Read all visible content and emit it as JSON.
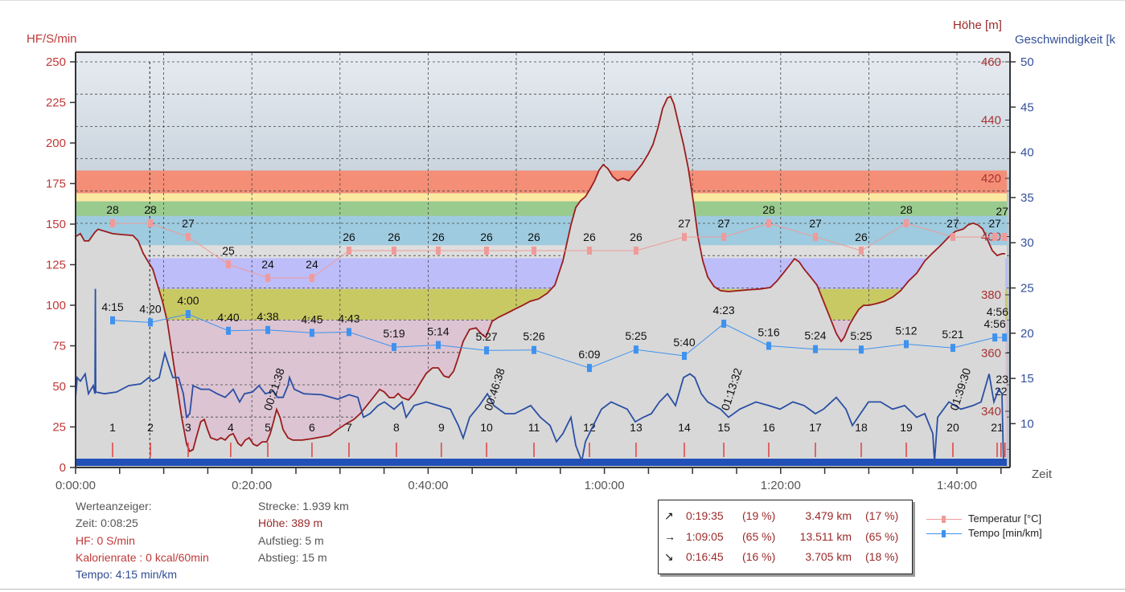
{
  "axes": {
    "left_title": "HF/S/min",
    "right_title_elev": "Höhe [m]",
    "right_title_speed": "Geschwindigkeit [k",
    "x_title": "Zeit",
    "left_ticks": [
      "0",
      "25",
      "50",
      "75",
      "100",
      "125",
      "150",
      "175",
      "200",
      "225",
      "250"
    ],
    "elev_ticks": [
      "340",
      "360",
      "380",
      "400",
      "420",
      "440",
      "460"
    ],
    "speed_ticks": [
      "10",
      "15",
      "20",
      "25",
      "30",
      "35",
      "40",
      "45",
      "50"
    ],
    "x_ticks": [
      "0:00:00",
      "0:20:00",
      "0:40:00",
      "1:00:00",
      "1:20:00",
      "1:40:00"
    ]
  },
  "chart_data": {
    "type": "line",
    "x_unit": "minutes",
    "xlim": [
      0,
      106
    ],
    "hf_ylim": [
      0,
      250
    ],
    "elev_ylim": [
      333,
      460
    ],
    "speed_ylim": [
      5.3,
      50
    ],
    "grid": true,
    "cursor_time_min": 8.42,
    "colors": {
      "hf_axis": "#c03838",
      "elev": "#9b1c1c",
      "speed": "#2a4fa3",
      "temp": "#f09a9a",
      "tempo": "#3f92ee",
      "lap_tick": "#e04040",
      "bar": "#2050b8",
      "elev_fill": "#d8d8d8"
    },
    "hf_zones": [
      {
        "from": 169,
        "to": 183,
        "color": "#f48e77"
      },
      {
        "from": 164,
        "to": 169,
        "color": "#fbe9a2"
      },
      {
        "from": 155,
        "to": 164,
        "color": "#9acb8e"
      },
      {
        "from": 137,
        "to": 155,
        "color": "#9ecbdf"
      },
      {
        "from": 129,
        "to": 137,
        "color": "#dedede"
      },
      {
        "from": 110,
        "to": 129,
        "color": "#bdbdfa"
      },
      {
        "from": 91,
        "to": 110,
        "color": "#c9c964"
      },
      {
        "from": 0,
        "to": 91,
        "color": "#dcc4d3"
      }
    ],
    "elevation": [
      [
        0,
        400
      ],
      [
        0.55,
        401
      ],
      [
        1,
        398.5
      ],
      [
        1.5,
        398.5
      ],
      [
        2.2,
        401.5
      ],
      [
        2.55,
        402.5
      ],
      [
        4.2,
        401
      ],
      [
        5.2,
        400.7
      ],
      [
        6.5,
        400.4
      ],
      [
        7.1,
        398.5
      ],
      [
        7.66,
        394.3
      ],
      [
        8.2,
        391.5
      ],
      [
        8.76,
        388.8
      ],
      [
        9.3,
        383.3
      ],
      [
        9.85,
        377.8
      ],
      [
        10.4,
        370.9
      ],
      [
        10.95,
        359.9
      ],
      [
        11.5,
        348.9
      ],
      [
        12.04,
        337.8
      ],
      [
        12.6,
        328.7
      ],
      [
        12.96,
        326.2
      ],
      [
        13.33,
        326.8
      ],
      [
        13.69,
        330.9
      ],
      [
        14.2,
        336.4
      ],
      [
        14.6,
        337.2
      ],
      [
        14.97,
        333.7
      ],
      [
        15.33,
        330.9
      ],
      [
        16.06,
        330.1
      ],
      [
        16.5,
        330.9
      ],
      [
        16.97,
        330.1
      ],
      [
        17.43,
        331.7
      ],
      [
        17.88,
        332.3
      ],
      [
        18.43,
        329
      ],
      [
        18.8,
        328.1
      ],
      [
        19.25,
        330.1
      ],
      [
        19.7,
        330.9
      ],
      [
        20.16,
        328.7
      ],
      [
        20.6,
        328.1
      ],
      [
        21.17,
        329.5
      ],
      [
        21.7,
        329.5
      ],
      [
        22.08,
        332.3
      ],
      [
        22.45,
        336.4
      ],
      [
        22.81,
        340.6
      ],
      [
        23.2,
        337.8
      ],
      [
        23.54,
        333.7
      ],
      [
        24.1,
        330.9
      ],
      [
        24.64,
        330.1
      ],
      [
        25.7,
        330.1
      ],
      [
        26.82,
        330.6
      ],
      [
        28.83,
        331.7
      ],
      [
        29.7,
        333.7
      ],
      [
        30.66,
        335.6
      ],
      [
        31.57,
        337.2
      ],
      [
        32.3,
        339.2
      ],
      [
        33.03,
        341.9
      ],
      [
        33.76,
        344.7
      ],
      [
        34.5,
        347.5
      ],
      [
        35.04,
        346.6
      ],
      [
        35.6,
        344.7
      ],
      [
        36.13,
        344.7
      ],
      [
        36.6,
        346.1
      ],
      [
        37.04,
        344.7
      ],
      [
        37.77,
        343.9
      ],
      [
        38.41,
        346.1
      ],
      [
        39.05,
        349.4
      ],
      [
        39.78,
        353
      ],
      [
        40.5,
        354.9
      ],
      [
        41.15,
        354.9
      ],
      [
        41.8,
        352.1
      ],
      [
        42.34,
        351.6
      ],
      [
        42.9,
        353.8
      ],
      [
        43.43,
        358.5
      ],
      [
        43.98,
        364
      ],
      [
        44.71,
        368.1
      ],
      [
        45.44,
        368.6
      ],
      [
        45.99,
        366.7
      ],
      [
        46.54,
        365.4
      ],
      [
        47.26,
        370.9
      ],
      [
        48,
        372.3
      ],
      [
        48.9,
        373.6
      ],
      [
        49.8,
        375
      ],
      [
        50.73,
        376.4
      ],
      [
        51.6,
        377.8
      ],
      [
        52.55,
        378.6
      ],
      [
        53.5,
        380.5
      ],
      [
        54.38,
        383.3
      ],
      [
        55.29,
        391.6
      ],
      [
        56.2,
        404
      ],
      [
        56.75,
        410
      ],
      [
        57.3,
        412.3
      ],
      [
        57.85,
        413.7
      ],
      [
        58.39,
        416.4
      ],
      [
        58.9,
        419.2
      ],
      [
        59.4,
        422.8
      ],
      [
        59.86,
        424.7
      ],
      [
        60.4,
        423.3
      ],
      [
        60.95,
        420.6
      ],
      [
        61.5,
        419.2
      ],
      [
        62.1,
        420
      ],
      [
        62.77,
        419.2
      ],
      [
        63.5,
        422
      ],
      [
        64.23,
        424.7
      ],
      [
        64.96,
        428.3
      ],
      [
        65.51,
        431.6
      ],
      [
        66.06,
        437.1
      ],
      [
        66.61,
        444
      ],
      [
        67.15,
        447.6
      ],
      [
        67.52,
        448.1
      ],
      [
        67.9,
        445.4
      ],
      [
        68.43,
        438.5
      ],
      [
        68.98,
        431.6
      ],
      [
        69.53,
        423.3
      ],
      [
        70.07,
        412.3
      ],
      [
        70.62,
        399.9
      ],
      [
        71.17,
        391.6
      ],
      [
        71.72,
        386.1
      ],
      [
        72.45,
        382.8
      ],
      [
        73.18,
        381.4
      ],
      [
        74.1,
        381.1
      ],
      [
        76.28,
        381.7
      ],
      [
        77.65,
        382
      ],
      [
        78.83,
        382.5
      ],
      [
        79.56,
        384.7
      ],
      [
        80.29,
        387.4
      ],
      [
        81.02,
        390.2
      ],
      [
        81.57,
        392.4
      ],
      [
        82.1,
        391.3
      ],
      [
        82.66,
        388.8
      ],
      [
        83.4,
        386.1
      ],
      [
        84.12,
        383.3
      ],
      [
        84.85,
        377.8
      ],
      [
        85.58,
        372.3
      ],
      [
        86.31,
        366.7
      ],
      [
        86.86,
        364
      ],
      [
        87.22,
        365.4
      ],
      [
        87.77,
        369.5
      ],
      [
        88.3,
        372.3
      ],
      [
        88.87,
        375
      ],
      [
        89.4,
        376.4
      ],
      [
        89.96,
        376.4
      ],
      [
        90.9,
        377
      ],
      [
        91.79,
        377.8
      ],
      [
        92.7,
        379.2
      ],
      [
        93.61,
        381.4
      ],
      [
        94.5,
        384.7
      ],
      [
        95.44,
        387.4
      ],
      [
        96.35,
        391.6
      ],
      [
        97.26,
        394.4
      ],
      [
        98.2,
        397.1
      ],
      [
        99.09,
        399.9
      ],
      [
        99.82,
        401.8
      ],
      [
        100.73,
        402.6
      ],
      [
        101.27,
        404
      ],
      [
        101.82,
        404.6
      ],
      [
        102.37,
        404
      ],
      [
        102.92,
        402.6
      ],
      [
        103.46,
        399
      ],
      [
        104.01,
        395.2
      ],
      [
        104.56,
        393.5
      ],
      [
        105.1,
        394.1
      ],
      [
        105.47,
        394.1
      ]
    ],
    "speed": [
      [
        0,
        12.9
      ],
      [
        0.18,
        15.1
      ],
      [
        0.55,
        14.7
      ],
      [
        1.09,
        15.5
      ],
      [
        1.46,
        13.3
      ],
      [
        2.0,
        14.2
      ],
      [
        2.2,
        13.3
      ],
      [
        2.24,
        24.9
      ],
      [
        2.28,
        13.5
      ],
      [
        3.28,
        13.3
      ],
      [
        4.65,
        13.5
      ],
      [
        6.02,
        14.2
      ],
      [
        7.39,
        14.4
      ],
      [
        8.3,
        15.1
      ],
      [
        8.76,
        14.7
      ],
      [
        9.49,
        15.1
      ],
      [
        10.13,
        17.8
      ],
      [
        10.58,
        16.4
      ],
      [
        11.04,
        15.1
      ],
      [
        11.68,
        15.1
      ],
      [
        12.23,
        13.3
      ],
      [
        12.59,
        10.7
      ],
      [
        12.96,
        11.1
      ],
      [
        13.32,
        14.2
      ],
      [
        14.23,
        13.8
      ],
      [
        15.15,
        13.8
      ],
      [
        16.06,
        13.3
      ],
      [
        16.97,
        12.9
      ],
      [
        17.88,
        13.8
      ],
      [
        18.61,
        12.4
      ],
      [
        19.16,
        13.3
      ],
      [
        20.07,
        13.5
      ],
      [
        20.8,
        14.2
      ],
      [
        21.53,
        13.3
      ],
      [
        22.45,
        13.6
      ],
      [
        22.9,
        12.9
      ],
      [
        23.54,
        12.9
      ],
      [
        24.09,
        14.2
      ],
      [
        24.27,
        15.1
      ],
      [
        24.82,
        13.8
      ],
      [
        25.91,
        13.3
      ],
      [
        27.92,
        13.2
      ],
      [
        29.74,
        12.7
      ],
      [
        31.02,
        13.2
      ],
      [
        32.03,
        12.9
      ],
      [
        32.66,
        10.7
      ],
      [
        33.39,
        11.1
      ],
      [
        34.31,
        12.0
      ],
      [
        35.04,
        12.4
      ],
      [
        36.13,
        11.6
      ],
      [
        37.04,
        12.4
      ],
      [
        37.5,
        10.7
      ],
      [
        38.41,
        12.0
      ],
      [
        39.78,
        12.4
      ],
      [
        41.15,
        12.0
      ],
      [
        42.52,
        11.6
      ],
      [
        43.43,
        9.8
      ],
      [
        43.98,
        8.4
      ],
      [
        44.71,
        10.7
      ],
      [
        45.8,
        12.0
      ],
      [
        46.72,
        13.3
      ],
      [
        47.45,
        12.0
      ],
      [
        48.72,
        11.1
      ],
      [
        49.82,
        11.1
      ],
      [
        51.64,
        12.0
      ],
      [
        52.74,
        10.7
      ],
      [
        53.83,
        9.8
      ],
      [
        54.56,
        8.0
      ],
      [
        55.29,
        8.9
      ],
      [
        56.2,
        10.7
      ],
      [
        56.75,
        7.6
      ],
      [
        57.3,
        6.2
      ],
      [
        57.4,
        5.4
      ],
      [
        57.5,
        6.2
      ],
      [
        57.85,
        8.0
      ],
      [
        58.94,
        10.2
      ],
      [
        59.67,
        11.6
      ],
      [
        60.77,
        12.4
      ],
      [
        61.68,
        12.0
      ],
      [
        62.59,
        11.6
      ],
      [
        63.5,
        10.2
      ],
      [
        64.42,
        10.7
      ],
      [
        65.33,
        11.1
      ],
      [
        66.24,
        12.4
      ],
      [
        67.15,
        13.3
      ],
      [
        68.07,
        12.0
      ],
      [
        68.98,
        15.1
      ],
      [
        69.71,
        15.5
      ],
      [
        70.26,
        15.1
      ],
      [
        70.99,
        13.3
      ],
      [
        71.72,
        12.4
      ],
      [
        72.45,
        12.0
      ],
      [
        73.18,
        11.6
      ],
      [
        74.09,
        10.7
      ],
      [
        75.36,
        11.6
      ],
      [
        77.19,
        12.4
      ],
      [
        78.65,
        12.0
      ],
      [
        79.93,
        11.6
      ],
      [
        81.39,
        12.4
      ],
      [
        82.66,
        12.0
      ],
      [
        83.94,
        11.1
      ],
      [
        84.85,
        11.6
      ],
      [
        86.31,
        12.9
      ],
      [
        87.41,
        11.6
      ],
      [
        88.14,
        9.8
      ],
      [
        89.05,
        11.1
      ],
      [
        89.96,
        12.4
      ],
      [
        91.33,
        12.4
      ],
      [
        92.7,
        11.6
      ],
      [
        94.07,
        12.0
      ],
      [
        95.44,
        10.7
      ],
      [
        96.35,
        11.1
      ],
      [
        97.26,
        8.9
      ],
      [
        97.45,
        5.8
      ],
      [
        97.81,
        10.7
      ],
      [
        99.09,
        12.4
      ],
      [
        100.46,
        11.6
      ],
      [
        101.82,
        12.0
      ],
      [
        102.74,
        12.4
      ],
      [
        103.65,
        15.5
      ],
      [
        104.2,
        12.4
      ],
      [
        104.74,
        13.8
      ],
      [
        105.11,
        13.3
      ],
      [
        105.29,
        5.4
      ]
    ],
    "laps": {
      "labels": [
        "1",
        "2",
        "3",
        "4",
        "5",
        "6",
        "7",
        "8",
        "9",
        "10",
        "11",
        "12",
        "13",
        "14",
        "15",
        "16",
        "17",
        "18",
        "19",
        "20",
        "21",
        "22",
        "23"
      ],
      "times": [
        4.2,
        8.49,
        12.77,
        17.6,
        21.81,
        26.82,
        31.02,
        36.4,
        41.5,
        46.63,
        52.01,
        58.3,
        63.59,
        69.07,
        73.55,
        78.65,
        83.94,
        89.14,
        94.25,
        99.54,
        104.56,
        105.0,
        105.45
      ]
    },
    "km_marks": [
      {
        "label": "00:21:38",
        "t": 21.63
      },
      {
        "label": "00:46:38",
        "t": 46.63
      },
      {
        "label": "01:13:32",
        "t": 73.53
      },
      {
        "label": "01:39:30",
        "t": 99.5
      }
    ],
    "temperature": {
      "name": "Temperatur [°C]",
      "t": [
        4.2,
        8.49,
        12.77,
        17.34,
        21.81,
        26.82,
        31.02,
        36.13,
        41.15,
        46.63,
        52.01,
        58.3,
        63.59,
        69.07,
        73.55,
        78.65,
        83.94,
        89.14,
        94.25,
        99.54,
        104.3,
        105.4
      ],
      "values": [
        28,
        28,
        27,
        25,
        24,
        24,
        26,
        26,
        26,
        26,
        26,
        26,
        26,
        27,
        27,
        28,
        27,
        26,
        28,
        27,
        27,
        27
      ],
      "labels": [
        "28",
        "28",
        "27",
        "25",
        "24",
        "24",
        "26",
        "26",
        "26",
        "26",
        "26",
        "26",
        "26",
        "27",
        "27",
        "28",
        "27",
        "26",
        "28",
        "27",
        "27",
        "27"
      ]
    },
    "tempo": {
      "name": "Tempo [min/km]",
      "t": [
        4.2,
        8.49,
        12.77,
        17.34,
        21.81,
        26.82,
        31.02,
        36.13,
        41.15,
        46.63,
        52.01,
        58.3,
        63.59,
        69.07,
        73.55,
        78.65,
        83.94,
        89.14,
        94.25,
        99.54,
        104.3,
        105.4
      ],
      "labels": [
        "4:15",
        "4:20",
        "4:00",
        "4:40",
        "4:38",
        "4:45",
        "4:43",
        "5:19",
        "5:14",
        "5:27",
        "5:26",
        "6:09",
        "5:25",
        "5:40",
        "4:23",
        "5:16",
        "5:24",
        "5:25",
        "5:12",
        "5:21",
        "4:56",
        "4:56"
      ]
    }
  },
  "info": {
    "title": "Werteanzeiger:",
    "zeit": "Zeit: 0:08:25",
    "hf": "HF: 0 S/min",
    "kalorien": "Kalorienrate : 0 kcal/60min",
    "tempo": "Tempo: 4:15 min/km",
    "strecke": "Strecke: 1.939 km",
    "hoehe": "Höhe: 389 m",
    "aufstieg": "Aufstieg: 5 m",
    "abstieg": "Abstieg: 15 m"
  },
  "stats": [
    {
      "arrow": "↗",
      "time": "0:19:35",
      "time_pct": "(19 %)",
      "dist": "3.479 km",
      "dist_pct": "(17 %)"
    },
    {
      "arrow": "→",
      "time": "1:09:05",
      "time_pct": "(65 %)",
      "dist": "13.511 km",
      "dist_pct": "(65 %)"
    },
    {
      "arrow": "↘",
      "time": "0:16:45",
      "time_pct": "(16 %)",
      "dist": "3.705 km",
      "dist_pct": "(18 %)"
    }
  ],
  "legend": [
    {
      "label": "Temperatur [°C]",
      "color": "#f09a9a"
    },
    {
      "label": "Tempo [min/km]",
      "color": "#3f92ee"
    }
  ]
}
